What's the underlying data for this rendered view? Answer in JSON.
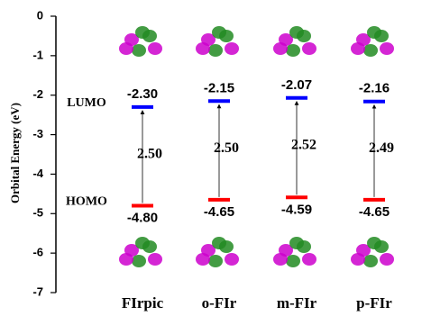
{
  "chart_data": {
    "type": "energy-level",
    "ylabel": "Orbital Energy (eV)",
    "categories": [
      "FIrpic",
      "o-FIr",
      "m-FIr",
      "p-FIr"
    ],
    "series": [
      {
        "name": "LUMO",
        "color": "#0000ff",
        "values": [
          -2.3,
          -2.15,
          -2.07,
          -2.16
        ],
        "value_labels": [
          "-2.30",
          "-2.15",
          "-2.07",
          "-2.16"
        ]
      },
      {
        "name": "HOMO",
        "color": "#ff0000",
        "values": [
          -4.8,
          -4.65,
          -4.59,
          -4.65
        ],
        "value_labels": [
          "-4.80",
          "-4.65",
          "-4.59",
          "-4.65"
        ]
      }
    ],
    "gaps": {
      "values": [
        2.5,
        2.5,
        2.52,
        2.49
      ],
      "value_labels": [
        "2.50",
        "2.50",
        "2.52",
        "2.49"
      ]
    },
    "ylim": [
      -7,
      0
    ],
    "yticks": [
      0,
      -1,
      -2,
      -3,
      -4,
      -5,
      -6,
      -7
    ]
  }
}
